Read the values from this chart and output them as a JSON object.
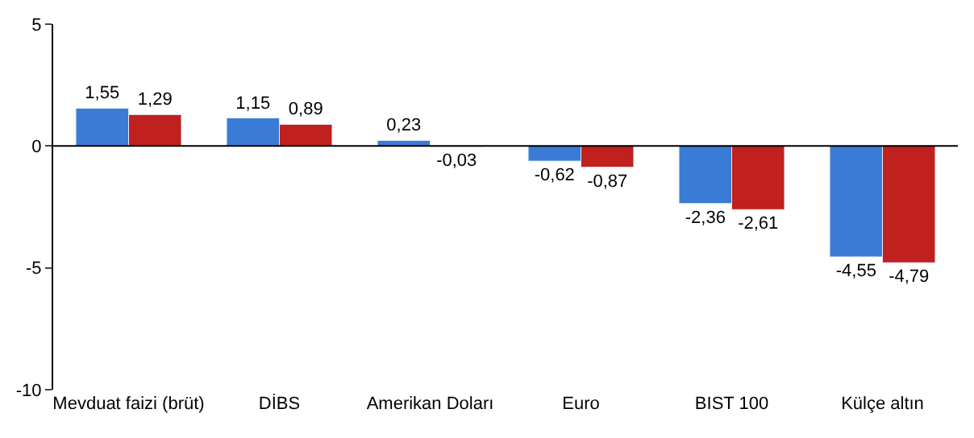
{
  "chart_data": {
    "type": "bar",
    "categories": [
      "Mevduat faizi (brüt)",
      "DİBS",
      "Amerikan Doları",
      "Euro",
      "BIST 100",
      "Külçe altın"
    ],
    "series": [
      {
        "color": "#3a7bd5",
        "values": [
          1.55,
          1.15,
          0.23,
          -0.62,
          -2.36,
          -4.55
        ],
        "value_labels": [
          "1,55",
          "1,15",
          "0,23",
          "-0,62",
          "-2,36",
          "-4,55"
        ]
      },
      {
        "color": "#c0201e",
        "values": [
          1.29,
          0.89,
          -0.03,
          -0.87,
          -2.61,
          -4.79
        ],
        "value_labels": [
          "1,29",
          "0,89",
          "-0,03",
          "-0,87",
          "-2,61",
          "-4,79"
        ]
      }
    ],
    "ylim": [
      -10,
      5
    ],
    "yticks": [
      5,
      0,
      -5,
      -10
    ],
    "legend": false,
    "ref_lines": [
      {
        "axis": "y",
        "value": 0,
        "color": "#000000"
      }
    ]
  }
}
